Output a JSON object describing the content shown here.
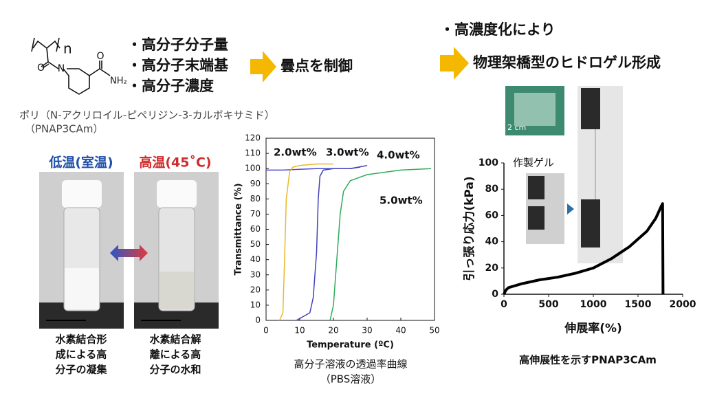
{
  "slide": {
    "chem_n": "n",
    "chem_o1": "O",
    "chem_n2": "N",
    "chem_o2": "O",
    "chem_nh2": "NH₂",
    "bullets": [
      "・高分子分子量",
      "・高分子末端基",
      "・高分子濃度"
    ],
    "result": "曇点を制御",
    "bullet2": "・高濃度化により",
    "result2": "物理架橋型のヒドロゲル形成",
    "polymer_name": "ポリ（N-アクリロイル-ピペリジン-3-カルボキサミド）",
    "polymer_abbr": "（PNAP3CAm）",
    "low_temp": "低温(室温)",
    "high_temp": "高温(45˚C)",
    "caption_low": [
      "水素結合形",
      "成による高",
      "分子の凝集"
    ],
    "caption_high": [
      "水素結合解",
      "離による高",
      "分子の水和"
    ],
    "chart1_caption": [
      "高分子溶液の透過率曲線",
      "（PBS溶液）"
    ],
    "chart2_caption": "高伸展性を示すPNAP3CAm",
    "gel_label": "作製ゲル",
    "scale_label": "2 cm"
  },
  "chart_data": [
    {
      "type": "line",
      "xlabel": "Temperature (ºC)",
      "ylabel": "Transmittance (%)",
      "xlim": [
        0,
        50
      ],
      "xticks": [
        0,
        10,
        20,
        30,
        40,
        50
      ],
      "ylim": [
        0,
        120
      ],
      "yticks": [
        0,
        10,
        20,
        30,
        40,
        50,
        60,
        70,
        80,
        90,
        100,
        110,
        120
      ],
      "series": [
        {
          "name": "2.0wt%",
          "color": "#4a4ad0",
          "label_color": "#111111",
          "x": [
            0,
            5,
            10,
            15,
            20,
            25,
            28
          ],
          "values": [
            99,
            99,
            99.5,
            100,
            100,
            100,
            101
          ]
        },
        {
          "name": "3.0wt%",
          "color": "#e8b828",
          "label_color": "#e8b828",
          "x": [
            4,
            5,
            5.5,
            6,
            7,
            8,
            10,
            15,
            20
          ],
          "values": [
            0,
            5,
            40,
            80,
            98,
            101,
            102,
            103,
            103
          ]
        },
        {
          "name": "4.0wt%",
          "color": "#4040b8",
          "label_color": "#7a4fc0",
          "x": [
            9,
            13,
            14,
            15,
            15.5,
            16,
            17,
            20,
            25,
            30
          ],
          "values": [
            0,
            5,
            15,
            45,
            80,
            95,
            99,
            100,
            100,
            102
          ]
        },
        {
          "name": "5.0wt%",
          "color": "#2eaa5a",
          "label_color": "#2eaa5a",
          "x": [
            19,
            20,
            21,
            22,
            23,
            25,
            30,
            40,
            49
          ],
          "values": [
            0,
            10,
            40,
            70,
            85,
            92,
            96,
            99,
            100
          ]
        }
      ]
    },
    {
      "type": "line",
      "xlabel": "伸展率(%)",
      "ylabel": "引っ張り応力(kPa)",
      "xlim": [
        0,
        2000
      ],
      "xticks": [
        0,
        500,
        1000,
        1500,
        2000
      ],
      "ylim": [
        0,
        100
      ],
      "yticks": [
        0,
        20,
        40,
        60,
        80,
        100
      ],
      "series": [
        {
          "color": "#000000",
          "x": [
            0,
            20,
            50,
            100,
            200,
            400,
            600,
            800,
            1000,
            1200,
            1400,
            1600,
            1700,
            1760,
            1775,
            1780
          ],
          "values": [
            0,
            3,
            5,
            6,
            8,
            11,
            13,
            16,
            20,
            27,
            36,
            48,
            58,
            67,
            69,
            0
          ]
        }
      ]
    }
  ]
}
